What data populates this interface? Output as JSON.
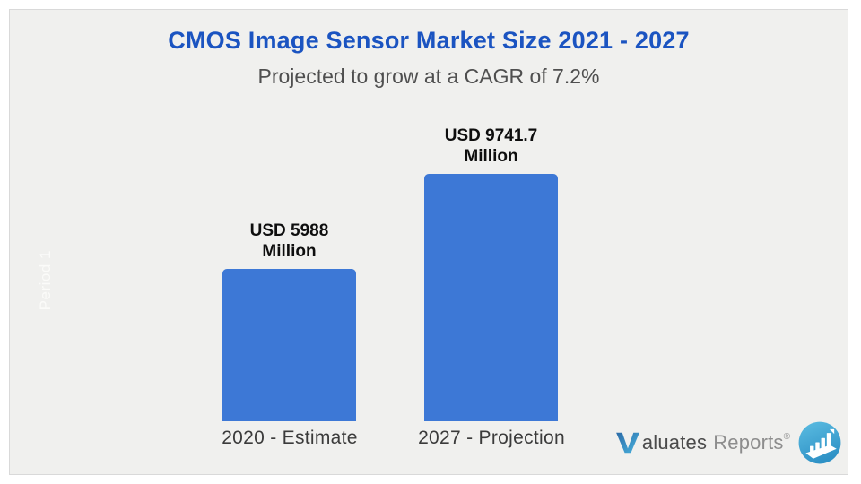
{
  "header": {
    "title": "CMOS Image Sensor Market Size 2021 - 2027",
    "subtitle": "Projected to grow at a CAGR of 7.2%"
  },
  "chart_data": {
    "type": "bar",
    "title": "CMOS Image Sensor Market Size 2021 - 2027",
    "subtitle": "Projected to grow at a CAGR of 7.2%",
    "unit": "USD Million",
    "categories": [
      "2020 - Estimate",
      "2027 - Projection"
    ],
    "values": [
      5988,
      9741.7
    ],
    "bars": [
      {
        "category": "2020 - Estimate",
        "value": 5988,
        "value_label": "USD 5988\nMillion"
      },
      {
        "category": "2027 - Projection",
        "value": 9741.7,
        "value_label": "USD 9741.7\nMillion"
      }
    ],
    "y_axis_watermark": "Period 1",
    "bar_color": "#3d78d6",
    "grid": false,
    "legend": false,
    "ylim": [
      0,
      10000
    ]
  },
  "logo": {
    "initial": "V",
    "name_rest": "aluates",
    "suffix": "Reports",
    "registered": "®",
    "icon": "bar-chart-circle-icon"
  },
  "colors": {
    "title": "#1b54c1",
    "subtitle": "#4f4f4f",
    "bar": "#3d78d6",
    "panel_background": "#f0f0ee",
    "watermark": "#fbfbf9",
    "logo_blue_dark": "#2b6ba7",
    "logo_blue_light": "#4ab4df"
  }
}
